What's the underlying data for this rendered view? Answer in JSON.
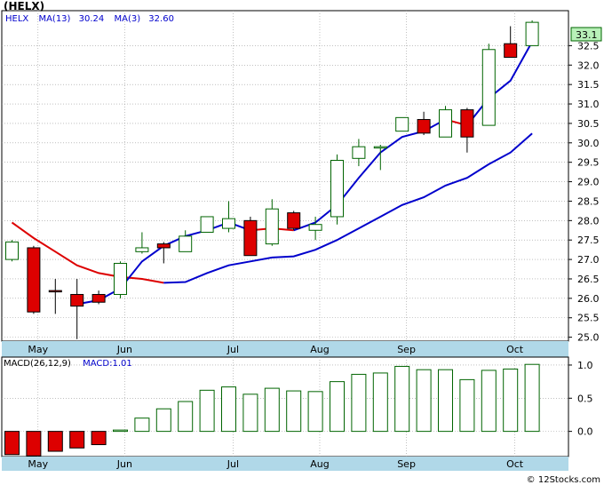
{
  "title": "(HELX)",
  "watermark": "© 12Stocks.com",
  "colors": {
    "up": "#006400",
    "down": "#dd0000",
    "ma13": "#dd0000",
    "ma3": "#0000cc",
    "macd_bar": "#006400",
    "axis_band": "#b0d8e8",
    "price_tag_bg": "#b8f0b8"
  },
  "price_panel": {
    "legend": {
      "ticker": "HELX",
      "ma13_label": "MA(13)",
      "ma13_value": "30.24",
      "ma3_label": "MA(3)",
      "ma3_value": "32.60"
    },
    "current_price": "33.1"
  },
  "macd_panel": {
    "legend": {
      "label": "MACD(26,12,9)",
      "value_label": "MACD:1.01"
    }
  },
  "chart_data": [
    {
      "type": "candlestick",
      "title": "(HELX)",
      "x_labels": [
        "May",
        "Jun",
        "Jul",
        "Aug",
        "Sep",
        "Oct"
      ],
      "x_label_positions": [
        1.2,
        5.2,
        10.2,
        14.2,
        18.2,
        23.2
      ],
      "ylim": [
        24.9,
        33.4
      ],
      "y_ticks": [
        "25.0",
        "25.5",
        "26.0",
        "26.5",
        "27.0",
        "27.5",
        "28.0",
        "28.5",
        "29.0",
        "29.5",
        "30.0",
        "30.5",
        "31.0",
        "31.5",
        "32.0",
        "32.5"
      ],
      "grid": true,
      "candles": [
        {
          "i": 0,
          "open": 27.0,
          "close": 27.45,
          "high": 27.5,
          "low": 26.95,
          "dir": "up"
        },
        {
          "i": 1,
          "open": 27.3,
          "close": 25.65,
          "high": 27.35,
          "low": 25.6,
          "dir": "down"
        },
        {
          "i": 2,
          "open": 26.2,
          "close": 26.2,
          "high": 26.5,
          "low": 25.6,
          "dir": "down"
        },
        {
          "i": 3,
          "open": 26.1,
          "close": 25.8,
          "high": 26.5,
          "low": 24.95,
          "dir": "down"
        },
        {
          "i": 4,
          "open": 26.1,
          "close": 25.9,
          "high": 26.2,
          "low": 25.85,
          "dir": "down"
        },
        {
          "i": 5,
          "open": 26.1,
          "close": 26.9,
          "high": 26.95,
          "low": 26.0,
          "dir": "up"
        },
        {
          "i": 6,
          "open": 27.2,
          "close": 27.3,
          "high": 27.7,
          "low": 27.15,
          "dir": "up"
        },
        {
          "i": 7,
          "open": 27.4,
          "close": 27.3,
          "high": 27.45,
          "low": 26.9,
          "dir": "down"
        },
        {
          "i": 8,
          "open": 27.2,
          "close": 27.6,
          "high": 27.75,
          "low": 27.2,
          "dir": "up"
        },
        {
          "i": 9,
          "open": 27.7,
          "close": 28.1,
          "high": 28.1,
          "low": 27.7,
          "dir": "up"
        },
        {
          "i": 10,
          "open": 27.8,
          "close": 28.05,
          "high": 28.5,
          "low": 27.7,
          "dir": "up"
        },
        {
          "i": 11,
          "open": 28.0,
          "close": 27.1,
          "high": 28.1,
          "low": 27.1,
          "dir": "down"
        },
        {
          "i": 12,
          "open": 27.4,
          "close": 28.3,
          "high": 28.55,
          "low": 27.35,
          "dir": "up"
        },
        {
          "i": 13,
          "open": 28.2,
          "close": 27.8,
          "high": 28.25,
          "low": 27.75,
          "dir": "down"
        },
        {
          "i": 14,
          "open": 27.75,
          "close": 27.9,
          "high": 28.1,
          "low": 27.5,
          "dir": "up"
        },
        {
          "i": 15,
          "open": 28.1,
          "close": 29.55,
          "high": 29.7,
          "low": 27.9,
          "dir": "up"
        },
        {
          "i": 16,
          "open": 29.6,
          "close": 29.9,
          "high": 30.1,
          "low": 29.4,
          "dir": "up"
        },
        {
          "i": 17,
          "open": 29.9,
          "close": 29.9,
          "high": 29.95,
          "low": 29.3,
          "dir": "up"
        },
        {
          "i": 18,
          "open": 30.3,
          "close": 30.65,
          "high": 30.65,
          "low": 30.3,
          "dir": "up"
        },
        {
          "i": 19,
          "open": 30.6,
          "close": 30.25,
          "high": 30.8,
          "low": 30.2,
          "dir": "down"
        },
        {
          "i": 20,
          "open": 30.15,
          "close": 30.85,
          "high": 30.95,
          "low": 30.15,
          "dir": "up"
        },
        {
          "i": 21,
          "open": 30.85,
          "close": 30.15,
          "high": 30.9,
          "low": 29.75,
          "dir": "down"
        },
        {
          "i": 22,
          "open": 30.45,
          "close": 32.4,
          "high": 32.55,
          "low": 30.45,
          "dir": "up"
        },
        {
          "i": 23,
          "open": 32.55,
          "close": 32.2,
          "high": 33.0,
          "low": 32.2,
          "dir": "down"
        },
        {
          "i": 24,
          "open": 32.5,
          "close": 33.1,
          "high": 33.15,
          "low": 32.5,
          "dir": "up"
        }
      ],
      "series": [
        {
          "name": "MA(13)",
          "color": "#dd0000",
          "x": [
            0,
            1,
            2,
            3,
            4,
            5,
            6,
            7
          ],
          "values": [
            27.95,
            27.55,
            27.2,
            26.85,
            26.65,
            26.55,
            26.5,
            26.4
          ]
        },
        {
          "name": "MA(13)",
          "color": "#0000cc",
          "x": [
            7,
            8,
            9,
            10,
            11,
            12,
            13,
            14,
            15,
            16,
            17,
            18,
            19,
            20,
            21,
            22,
            23,
            24
          ],
          "values": [
            26.4,
            26.42,
            26.65,
            26.85,
            26.95,
            27.05,
            27.08,
            27.25,
            27.5,
            27.8,
            28.1,
            28.4,
            28.6,
            28.9,
            29.1,
            29.45,
            29.75,
            30.24
          ]
        },
        {
          "name": "MA(3)",
          "color": "#0000cc",
          "x": [
            3,
            4,
            5,
            6,
            7,
            8,
            9,
            10,
            11
          ],
          "values": [
            25.85,
            25.95,
            26.25,
            26.95,
            27.35,
            27.6,
            27.75,
            27.95,
            27.75
          ]
        },
        {
          "name": "MA(3)",
          "color": "#dd0000",
          "x": [
            11,
            12,
            13
          ],
          "values": [
            27.75,
            27.8,
            27.75
          ]
        },
        {
          "name": "MA(3)",
          "color": "#0000cc",
          "x": [
            13,
            14,
            15,
            16,
            17,
            18,
            19,
            20
          ],
          "values": [
            27.75,
            27.95,
            28.4,
            29.1,
            29.75,
            30.15,
            30.3,
            30.6
          ]
        },
        {
          "name": "MA(3)",
          "color": "#dd0000",
          "x": [
            20,
            21
          ],
          "values": [
            30.6,
            30.45
          ]
        },
        {
          "name": "MA(3)",
          "color": "#0000cc",
          "x": [
            21,
            22,
            23,
            24
          ],
          "values": [
            30.45,
            31.15,
            31.6,
            32.6
          ]
        }
      ]
    },
    {
      "type": "bar",
      "title": "MACD(26,12,9)",
      "x_labels": [
        "May",
        "Jun",
        "Jul",
        "Aug",
        "Sep",
        "Oct"
      ],
      "x_label_positions": [
        1.2,
        5.2,
        10.2,
        14.2,
        18.2,
        23.2
      ],
      "ylim": [
        -0.38,
        1.12
      ],
      "y_ticks": [
        "1.0",
        "0.5",
        "0.0"
      ],
      "grid": true,
      "values": [
        -0.35,
        -0.37,
        -0.3,
        -0.25,
        -0.2,
        0.02,
        0.2,
        0.34,
        0.45,
        0.62,
        0.67,
        0.56,
        0.65,
        0.61,
        0.6,
        0.75,
        0.86,
        0.88,
        0.98,
        0.93,
        0.93,
        0.78,
        0.92,
        0.94,
        1.01
      ]
    }
  ]
}
